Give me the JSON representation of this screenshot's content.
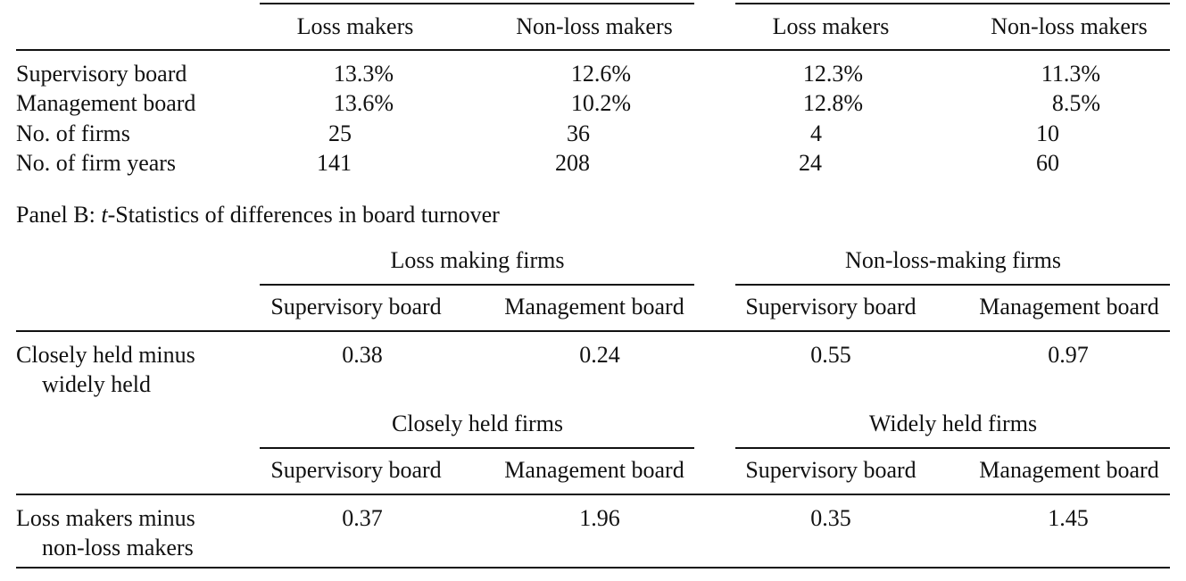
{
  "panel_a": {
    "columns": [
      "Loss makers",
      "Non-loss makers",
      "Loss makers",
      "Non-loss makers"
    ],
    "rows": [
      [
        "Supervisory board",
        "13.3%",
        "12.6%",
        "12.3%",
        "11.3%"
      ],
      [
        "Management board",
        "13.6%",
        "10.2%",
        "12.8%",
        "8.5%"
      ],
      [
        "No. of firms",
        "25",
        "36",
        "4",
        "10"
      ],
      [
        "No. of firm years",
        "141",
        "208",
        "24",
        "60"
      ]
    ]
  },
  "panel_b": {
    "title_prefix": "Panel B:",
    "title_italic": "t",
    "title_suffix": "-Statistics of differences in board turnover",
    "sections": [
      {
        "groups": [
          "Loss making firms",
          "Non-loss-making firms"
        ],
        "columns": [
          "Supervisory board",
          "Management board",
          "Supervisory board",
          "Management board"
        ],
        "label": [
          "Closely held minus",
          "widely held"
        ],
        "values": [
          "0.38",
          "0.24",
          "0.55",
          "0.97"
        ]
      },
      {
        "groups": [
          "Closely held firms",
          "Widely held firms"
        ],
        "columns": [
          "Supervisory board",
          "Management board",
          "Supervisory board",
          "Management board"
        ],
        "label": [
          "Loss makers minus",
          "non-loss makers"
        ],
        "values": [
          "0.37",
          "1.96",
          "0.35",
          "1.45"
        ]
      }
    ]
  }
}
